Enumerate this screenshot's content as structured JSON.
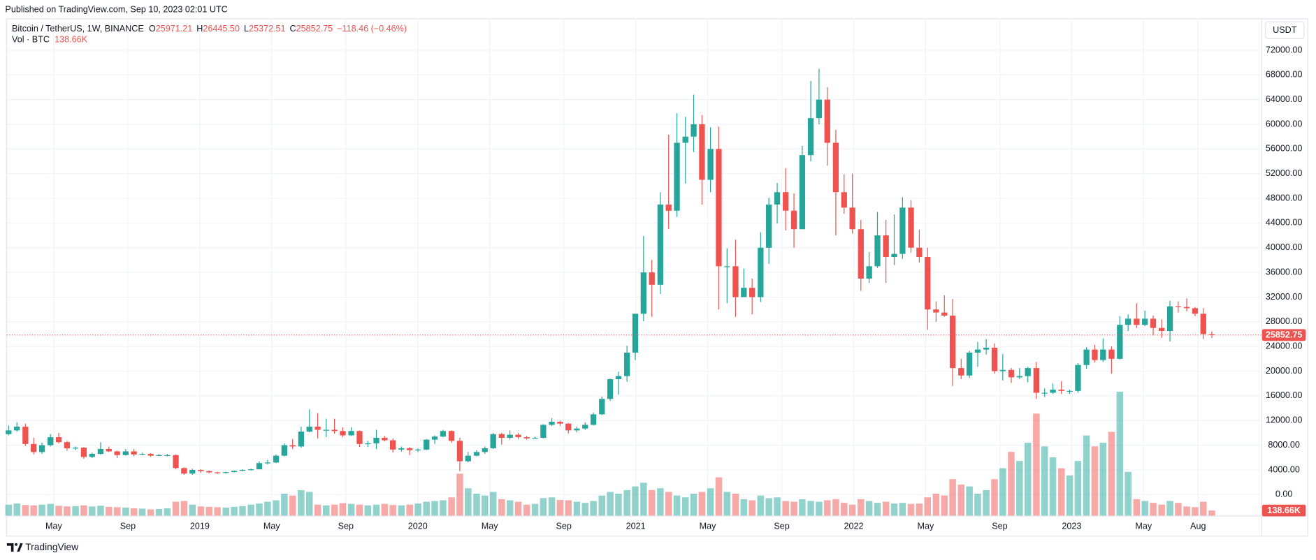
{
  "header": {
    "published": "Published on TradingView.com, Sep 10, 2023 02:01 UTC"
  },
  "footer": {
    "brand": "TradingView"
  },
  "chart_data": {
    "type": "candlestick",
    "currency": "USDT",
    "series": [
      {
        "name": "Bitcoin / TetherUS, 1W, BINANCE",
        "open": [
          9800,
          10400,
          11000,
          8200,
          6900,
          8000,
          9300,
          8500,
          7500,
          7600,
          6100,
          6600,
          7400,
          7000,
          6400,
          7000,
          6500,
          6600,
          6300,
          6400,
          6400,
          4300,
          3400,
          4000,
          3800,
          3600,
          3500,
          3650,
          3850,
          4000,
          4100,
          5100,
          5200,
          6300,
          8000,
          7800,
          10200,
          11000,
          10500,
          10500,
          10300,
          9600,
          10300,
          8200,
          8300,
          9200,
          8800,
          7300,
          7500,
          7200,
          7300,
          8900,
          9400,
          10300,
          8700,
          5400,
          6300,
          6900,
          7500,
          9800,
          9200,
          9700,
          9300,
          9100,
          9200,
          11300,
          11800,
          11500,
          10400,
          10700,
          11300,
          13000,
          15500,
          18700,
          19200,
          23000,
          29300,
          36000,
          34000,
          47000,
          46000,
          57000,
          58000,
          60000,
          51000,
          56000,
          37000,
          37000,
          32000,
          33500,
          32000,
          40000,
          47000,
          49000,
          46000,
          43000,
          55000,
          61000,
          64000,
          57000,
          49000,
          46500,
          43000,
          35000,
          37000,
          42000,
          38500,
          39000,
          46500,
          40000,
          38500,
          30000,
          29500,
          29000,
          20500,
          19300,
          23000,
          23500,
          23800,
          20000,
          20200,
          19000,
          19200,
          20500,
          16500,
          16500,
          17000,
          16800,
          16800,
          21000,
          23500,
          21800,
          23500,
          22000,
          27500,
          28500,
          27500,
          28500,
          27000,
          26500,
          30500,
          30400,
          30200,
          29300,
          25971.21
        ],
        "high": [
          11200,
          11700,
          11500,
          9200,
          8400,
          9800,
          10000,
          8700,
          7800,
          7700,
          6800,
          8500,
          7800,
          7100,
          7400,
          7400,
          6800,
          6700,
          6600,
          6600,
          6500,
          4400,
          4200,
          4100,
          3900,
          3700,
          3700,
          3900,
          4100,
          4200,
          5400,
          5600,
          6500,
          8300,
          9000,
          11000,
          13800,
          13200,
          12300,
          12300,
          10900,
          10900,
          10400,
          8700,
          10500,
          9500,
          9100,
          7800,
          7700,
          7500,
          9000,
          9600,
          10500,
          10400,
          9200,
          6900,
          7200,
          7800,
          10000,
          10000,
          10400,
          10000,
          9500,
          9400,
          11400,
          12400,
          12000,
          11600,
          11000,
          11700,
          13300,
          15900,
          18800,
          19900,
          24100,
          29300,
          41900,
          38000,
          49000,
          58300,
          61800,
          61200,
          64800,
          61500,
          59500,
          59600,
          39900,
          41300,
          36600,
          35000,
          42500,
          48100,
          50500,
          52900,
          48800,
          56500,
          67000,
          69000,
          66000,
          59100,
          51900,
          52000,
          44500,
          39300,
          45800,
          44500,
          45400,
          48200,
          47700,
          42900,
          40000,
          31300,
          32300,
          31700,
          22000,
          23300,
          24700,
          25200,
          24500,
          22800,
          20500,
          20500,
          20700,
          21500,
          17200,
          18000,
          18400,
          17000,
          21300,
          23900,
          24300,
          25300,
          24000,
          28900,
          29200,
          31000,
          29800,
          29000,
          28400,
          31400,
          31300,
          31800,
          30400,
          30200,
          26445.5
        ],
        "low": [
          9600,
          10200,
          7900,
          6500,
          6600,
          7800,
          8300,
          7100,
          7200,
          5800,
          5900,
          6500,
          6900,
          5900,
          6300,
          6200,
          6400,
          6100,
          6200,
          6200,
          4100,
          3200,
          3200,
          3500,
          3450,
          3350,
          3400,
          3600,
          3800,
          3900,
          4100,
          4900,
          5100,
          6200,
          7400,
          7600,
          10100,
          9100,
          9300,
          9900,
          9300,
          9500,
          7700,
          7700,
          7400,
          8600,
          6800,
          7000,
          6400,
          6900,
          7200,
          8200,
          9300,
          8400,
          3800,
          5200,
          6200,
          6600,
          7400,
          8100,
          8900,
          9000,
          8900,
          9000,
          9100,
          11100,
          11100,
          9900,
          10100,
          10500,
          11200,
          12900,
          15200,
          16200,
          18300,
          21800,
          28100,
          28800,
          32500,
          43000,
          45000,
          50400,
          55500,
          47000,
          49000,
          30000,
          31000,
          28800,
          32000,
          29200,
          31200,
          37400,
          43900,
          42800,
          40000,
          43000,
          54000,
          60000,
          53300,
          42000,
          45500,
          42300,
          33000,
          34300,
          36700,
          34300,
          37200,
          38200,
          39200,
          37600,
          26700,
          28000,
          28800,
          17600,
          18700,
          18900,
          20700,
          22700,
          19600,
          18500,
          18100,
          18700,
          18200,
          15500,
          15800,
          16300,
          16300,
          16300,
          16500,
          20400,
          21400,
          21500,
          19600,
          21900,
          26500,
          27000,
          27300,
          25800,
          25400,
          24800,
          29500,
          29700,
          28900,
          25200,
          25372.51
        ],
        "close": [
          10400,
          11000,
          8200,
          6900,
          8000,
          9300,
          8500,
          7500,
          7600,
          6100,
          6600,
          7400,
          7000,
          6400,
          7000,
          6500,
          6600,
          6300,
          6400,
          6400,
          4300,
          3400,
          4000,
          3800,
          3600,
          3500,
          3650,
          3850,
          4000,
          4100,
          5100,
          5200,
          6300,
          8000,
          7800,
          10200,
          11000,
          10500,
          10500,
          10300,
          9600,
          10300,
          8200,
          8300,
          9200,
          8800,
          7300,
          7500,
          7200,
          7300,
          8900,
          9400,
          10300,
          8700,
          5400,
          6300,
          6900,
          7500,
          9800,
          9200,
          9700,
          9300,
          9100,
          9200,
          11300,
          11800,
          11500,
          10400,
          10700,
          11300,
          13000,
          15500,
          18700,
          19200,
          23000,
          29300,
          36000,
          34000,
          47000,
          46000,
          57000,
          58000,
          60000,
          51000,
          56000,
          37000,
          37000,
          32000,
          33500,
          32000,
          40000,
          47000,
          49000,
          46000,
          43000,
          55000,
          61000,
          64000,
          57000,
          49000,
          46500,
          43000,
          35000,
          37000,
          42000,
          38500,
          39000,
          46500,
          40000,
          38500,
          30000,
          29500,
          29000,
          20500,
          19300,
          23000,
          23500,
          23800,
          20000,
          20200,
          19000,
          19200,
          20500,
          16500,
          16500,
          17000,
          16800,
          16800,
          21000,
          23500,
          21800,
          23500,
          22000,
          27500,
          28500,
          27500,
          28500,
          27000,
          26500,
          30500,
          30400,
          30200,
          29300,
          26000,
          25852.75
        ]
      }
    ],
    "x": [
      2018.123,
      2018.161,
      2018.2,
      2018.238,
      2018.276,
      2018.315,
      2018.353,
      2018.391,
      2018.43,
      2018.468,
      2018.506,
      2018.545,
      2018.583,
      2018.621,
      2018.66,
      2018.698,
      2018.736,
      2018.775,
      2018.813,
      2018.851,
      2018.89,
      2018.928,
      2018.966,
      2019.005,
      2019.043,
      2019.081,
      2019.12,
      2019.158,
      2019.196,
      2019.235,
      2019.273,
      2019.311,
      2019.35,
      2019.388,
      2019.426,
      2019.465,
      2019.503,
      2019.541,
      2019.58,
      2019.618,
      2019.656,
      2019.695,
      2019.733,
      2019.771,
      2019.81,
      2019.848,
      2019.886,
      2019.925,
      2019.963,
      2020.001,
      2020.04,
      2020.078,
      2020.116,
      2020.155,
      2020.193,
      2020.231,
      2020.27,
      2020.308,
      2020.346,
      2020.385,
      2020.423,
      2020.461,
      2020.5,
      2020.538,
      2020.576,
      2020.615,
      2020.653,
      2020.691,
      2020.73,
      2020.768,
      2020.806,
      2020.845,
      2020.883,
      2020.921,
      2020.96,
      2020.998,
      2021.036,
      2021.074,
      2021.113,
      2021.151,
      2021.189,
      2021.228,
      2021.266,
      2021.304,
      2021.343,
      2021.381,
      2021.419,
      2021.458,
      2021.496,
      2021.534,
      2021.573,
      2021.611,
      2021.649,
      2021.688,
      2021.726,
      2021.764,
      2021.803,
      2021.841,
      2021.879,
      2021.918,
      2021.956,
      2021.994,
      2022.033,
      2022.071,
      2022.109,
      2022.148,
      2022.186,
      2022.224,
      2022.263,
      2022.301,
      2022.339,
      2022.378,
      2022.416,
      2022.454,
      2022.493,
      2022.531,
      2022.569,
      2022.608,
      2022.646,
      2022.684,
      2022.723,
      2022.761,
      2022.799,
      2022.838,
      2022.876,
      2022.914,
      2022.953,
      2022.991,
      2023.029,
      2023.068,
      2023.106,
      2023.144,
      2023.183,
      2023.221,
      2023.259,
      2023.298,
      2023.336,
      2023.374,
      2023.413,
      2023.451,
      2023.489,
      2023.528,
      2023.566,
      2023.604,
      2023.643
    ],
    "volume": {
      "name": "Vol · BTC",
      "axis": "y2",
      "value_label": "138.66K",
      "values": [
        300,
        330,
        290,
        280,
        300,
        320,
        270,
        250,
        260,
        280,
        250,
        270,
        240,
        230,
        220,
        200,
        190,
        170,
        180,
        200,
        380,
        400,
        300,
        250,
        240,
        230,
        220,
        240,
        260,
        300,
        330,
        380,
        420,
        600,
        550,
        700,
        650,
        300,
        280,
        300,
        340,
        320,
        300,
        280,
        300,
        320,
        290,
        280,
        300,
        330,
        380,
        400,
        420,
        500,
        1150,
        750,
        600,
        550,
        650,
        450,
        420,
        380,
        300,
        320,
        480,
        500,
        430,
        420,
        380,
        350,
        400,
        550,
        650,
        600,
        700,
        800,
        900,
        700,
        750,
        650,
        550,
        500,
        600,
        650,
        750,
        1050,
        650,
        600,
        450,
        420,
        550,
        480,
        500,
        400,
        380,
        450,
        400,
        380,
        420,
        450,
        350,
        300,
        450,
        400,
        350,
        380,
        330,
        350,
        320,
        330,
        500,
        600,
        550,
        1000,
        850,
        800,
        600,
        700,
        1000,
        1300,
        1750,
        1500,
        2000,
        2800,
        1900,
        1600,
        1300,
        1100,
        1500,
        2200,
        1900,
        2000,
        2300,
        3400,
        1200,
        450,
        400,
        350,
        300,
        400,
        350,
        250,
        230,
        380,
        138.66
      ]
    },
    "legend": {
      "items": [
        {
          "key": "O",
          "value": "25971.21"
        },
        {
          "key": "H",
          "value": "26445.50"
        },
        {
          "key": "L",
          "value": "25372.51"
        },
        {
          "key": "C",
          "value": "25852.75"
        }
      ],
      "change": "−118.46 (−0.46%)"
    },
    "last_price_label": "25852.75",
    "up_color": "#26a69a",
    "down_color": "#ef5350",
    "grid": true,
    "xlim": [
      2018.115,
      2023.87
    ],
    "xticks": [
      {
        "value": 2018.33,
        "label": "May"
      },
      {
        "value": 2018.67,
        "label": "Sep"
      },
      2019,
      {
        "value": 2019.33,
        "label": "May"
      },
      {
        "value": 2019.67,
        "label": "Sep"
      },
      2020,
      {
        "value": 2020.33,
        "label": "May"
      },
      {
        "value": 2020.67,
        "label": "Sep"
      },
      2021,
      {
        "value": 2021.33,
        "label": "May"
      },
      {
        "value": 2021.67,
        "label": "Sep"
      },
      2022,
      {
        "value": 2022.33,
        "label": "May"
      },
      {
        "value": 2022.67,
        "label": "Sep"
      },
      2023,
      {
        "value": 2023.33,
        "label": "May"
      },
      {
        "value": 2023.58,
        "label": "Aug"
      }
    ],
    "ylim": [
      -3400,
      77150
    ],
    "yticks": [
      {
        "value": 0,
        "label": "0.00"
      },
      {
        "value": 4000,
        "label": "4000.00"
      },
      {
        "value": 8000,
        "label": "8000.00"
      },
      {
        "value": 12000,
        "label": "12000.00"
      },
      {
        "value": 16000,
        "label": "16000.00"
      },
      {
        "value": 20000,
        "label": "20000.00"
      },
      {
        "value": 24000,
        "label": "24000.00"
      },
      {
        "value": 28000,
        "label": "28000.00"
      },
      {
        "value": 32000,
        "label": "32000.00"
      },
      {
        "value": 36000,
        "label": "36000.00"
      },
      {
        "value": 40000,
        "label": "40000.00"
      },
      {
        "value": 44000,
        "label": "44000.00"
      },
      {
        "value": 48000,
        "label": "48000.00"
      },
      {
        "value": 52000,
        "label": "52000.00"
      },
      {
        "value": 56000,
        "label": "56000.00"
      },
      {
        "value": 60000,
        "label": "60000.00"
      },
      {
        "value": 64000,
        "label": "64000.00"
      },
      {
        "value": 68000,
        "label": "68000.00"
      },
      {
        "value": 72000,
        "label": "72000.00"
      }
    ],
    "y2lim": [
      0,
      13650
    ]
  }
}
